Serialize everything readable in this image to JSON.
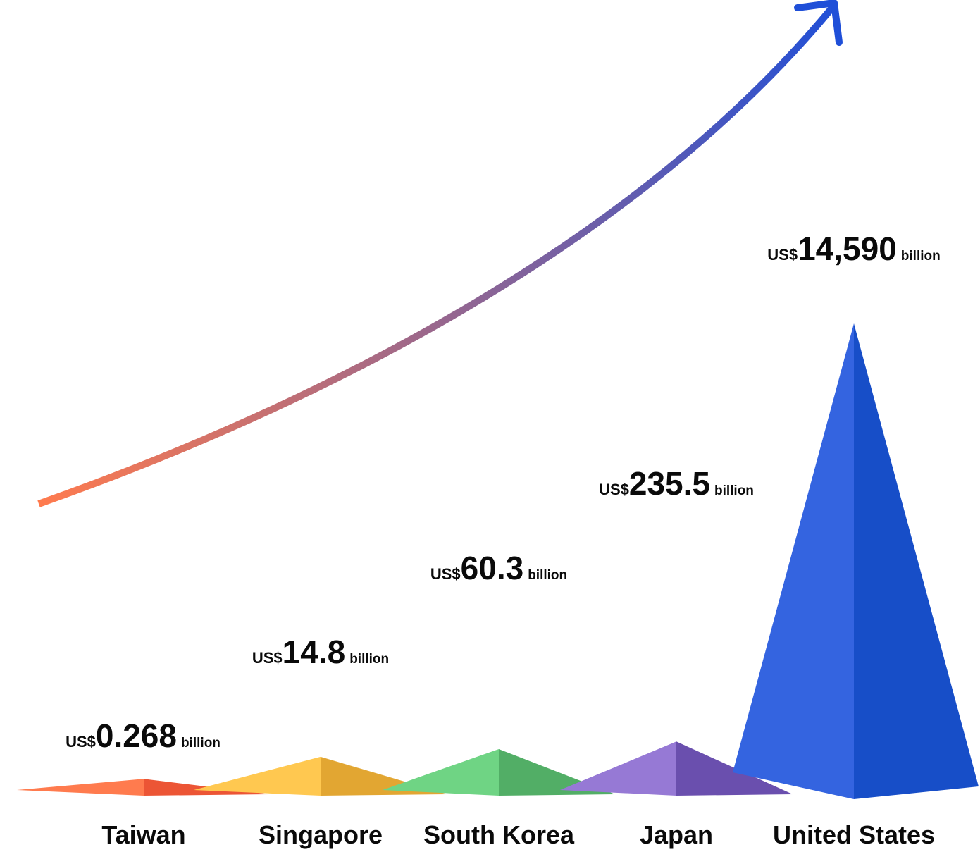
{
  "chart_data": {
    "type": "bar",
    "categories": [
      "Taiwan",
      "Singapore",
      "South Korea",
      "Japan",
      "United States"
    ],
    "values": [
      0.268,
      14.8,
      60.3,
      235.5,
      14590
    ],
    "value_labels": [
      {
        "prefix": "US$",
        "number": "0.268",
        "suffix": "billion"
      },
      {
        "prefix": "US$",
        "number": "14.8",
        "suffix": "billion"
      },
      {
        "prefix": "US$",
        "number": "60.3",
        "suffix": "billion"
      },
      {
        "prefix": "US$",
        "number": "235.5",
        "suffix": "billion"
      },
      {
        "prefix": "US$",
        "number": "14,590",
        "suffix": "billion"
      }
    ],
    "title": "",
    "xlabel": "",
    "ylabel": "",
    "grid": false,
    "legend": "none",
    "mark_shape": "pyramid",
    "trend_arrow": true,
    "colors": [
      {
        "light": "#FF7B4E",
        "dark": "#EC5535"
      },
      {
        "light": "#FFC850",
        "dark": "#E2A632"
      },
      {
        "light": "#6FD484",
        "dark": "#52AE66"
      },
      {
        "light": "#9679D5",
        "dark": "#6A4FAE"
      },
      {
        "light": "#3464E0",
        "dark": "#174EC8"
      }
    ],
    "arrow_colors": {
      "start": "#FF7B4E",
      "end": "#1F4FD8"
    }
  }
}
